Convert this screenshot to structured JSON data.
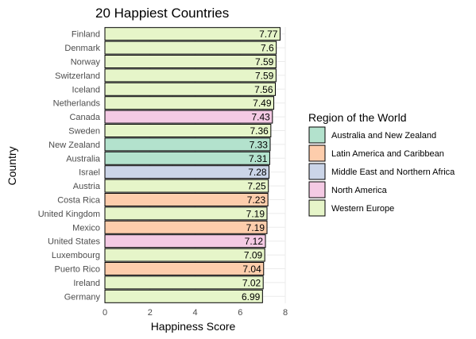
{
  "chart_data": {
    "type": "bar",
    "orientation": "horizontal",
    "title": "20 Happiest Countries",
    "xlabel": "Happiness Score",
    "ylabel": "Country",
    "xlim": [
      0,
      8
    ],
    "x_ticks": [
      0,
      2,
      4,
      6,
      8
    ],
    "grid": true,
    "legend_placement": "right",
    "legend": {
      "title": "Region of the World",
      "entries": [
        {
          "name": "Australia and New Zealand",
          "color": "#b3e2cd"
        },
        {
          "name": "Latin America and Caribbean",
          "color": "#fdcdac"
        },
        {
          "name": "Middle East and Northern Africa",
          "color": "#cbd5e8"
        },
        {
          "name": "North America",
          "color": "#f4cae4"
        },
        {
          "name": "Western Europe",
          "color": "#e6f5c9"
        }
      ]
    },
    "bars": [
      {
        "country": "Finland",
        "value": 7.77,
        "label": "7.77",
        "region": "Western Europe"
      },
      {
        "country": "Denmark",
        "value": 7.6,
        "label": "7.6",
        "region": "Western Europe"
      },
      {
        "country": "Norway",
        "value": 7.59,
        "label": "7.59",
        "region": "Western Europe"
      },
      {
        "country": "Switzerland",
        "value": 7.59,
        "label": "7.59",
        "region": "Western Europe"
      },
      {
        "country": "Iceland",
        "value": 7.56,
        "label": "7.56",
        "region": "Western Europe"
      },
      {
        "country": "Netherlands",
        "value": 7.49,
        "label": "7.49",
        "region": "Western Europe"
      },
      {
        "country": "Canada",
        "value": 7.43,
        "label": "7.43",
        "region": "North America"
      },
      {
        "country": "Sweden",
        "value": 7.36,
        "label": "7.36",
        "region": "Western Europe"
      },
      {
        "country": "New Zealand",
        "value": 7.33,
        "label": "7.33",
        "region": "Australia and New Zealand"
      },
      {
        "country": "Australia",
        "value": 7.31,
        "label": "7.31",
        "region": "Australia and New Zealand"
      },
      {
        "country": "Israel",
        "value": 7.28,
        "label": "7.28",
        "region": "Middle East and Northern Africa"
      },
      {
        "country": "Austria",
        "value": 7.25,
        "label": "7.25",
        "region": "Western Europe"
      },
      {
        "country": "Costa Rica",
        "value": 7.23,
        "label": "7.23",
        "region": "Latin America and Caribbean"
      },
      {
        "country": "United Kingdom",
        "value": 7.19,
        "label": "7.19",
        "region": "Western Europe"
      },
      {
        "country": "Mexico",
        "value": 7.19,
        "label": "7.19",
        "region": "Latin America and Caribbean"
      },
      {
        "country": "United States",
        "value": 7.12,
        "label": "7.12",
        "region": "North America"
      },
      {
        "country": "Luxembourg",
        "value": 7.09,
        "label": "7.09",
        "region": "Western Europe"
      },
      {
        "country": "Puerto Rico",
        "value": 7.04,
        "label": "7.04",
        "region": "Latin America and Caribbean"
      },
      {
        "country": "Ireland",
        "value": 7.02,
        "label": "7.02",
        "region": "Western Europe"
      },
      {
        "country": "Germany",
        "value": 6.99,
        "label": "6.99",
        "region": "Western Europe"
      }
    ]
  }
}
